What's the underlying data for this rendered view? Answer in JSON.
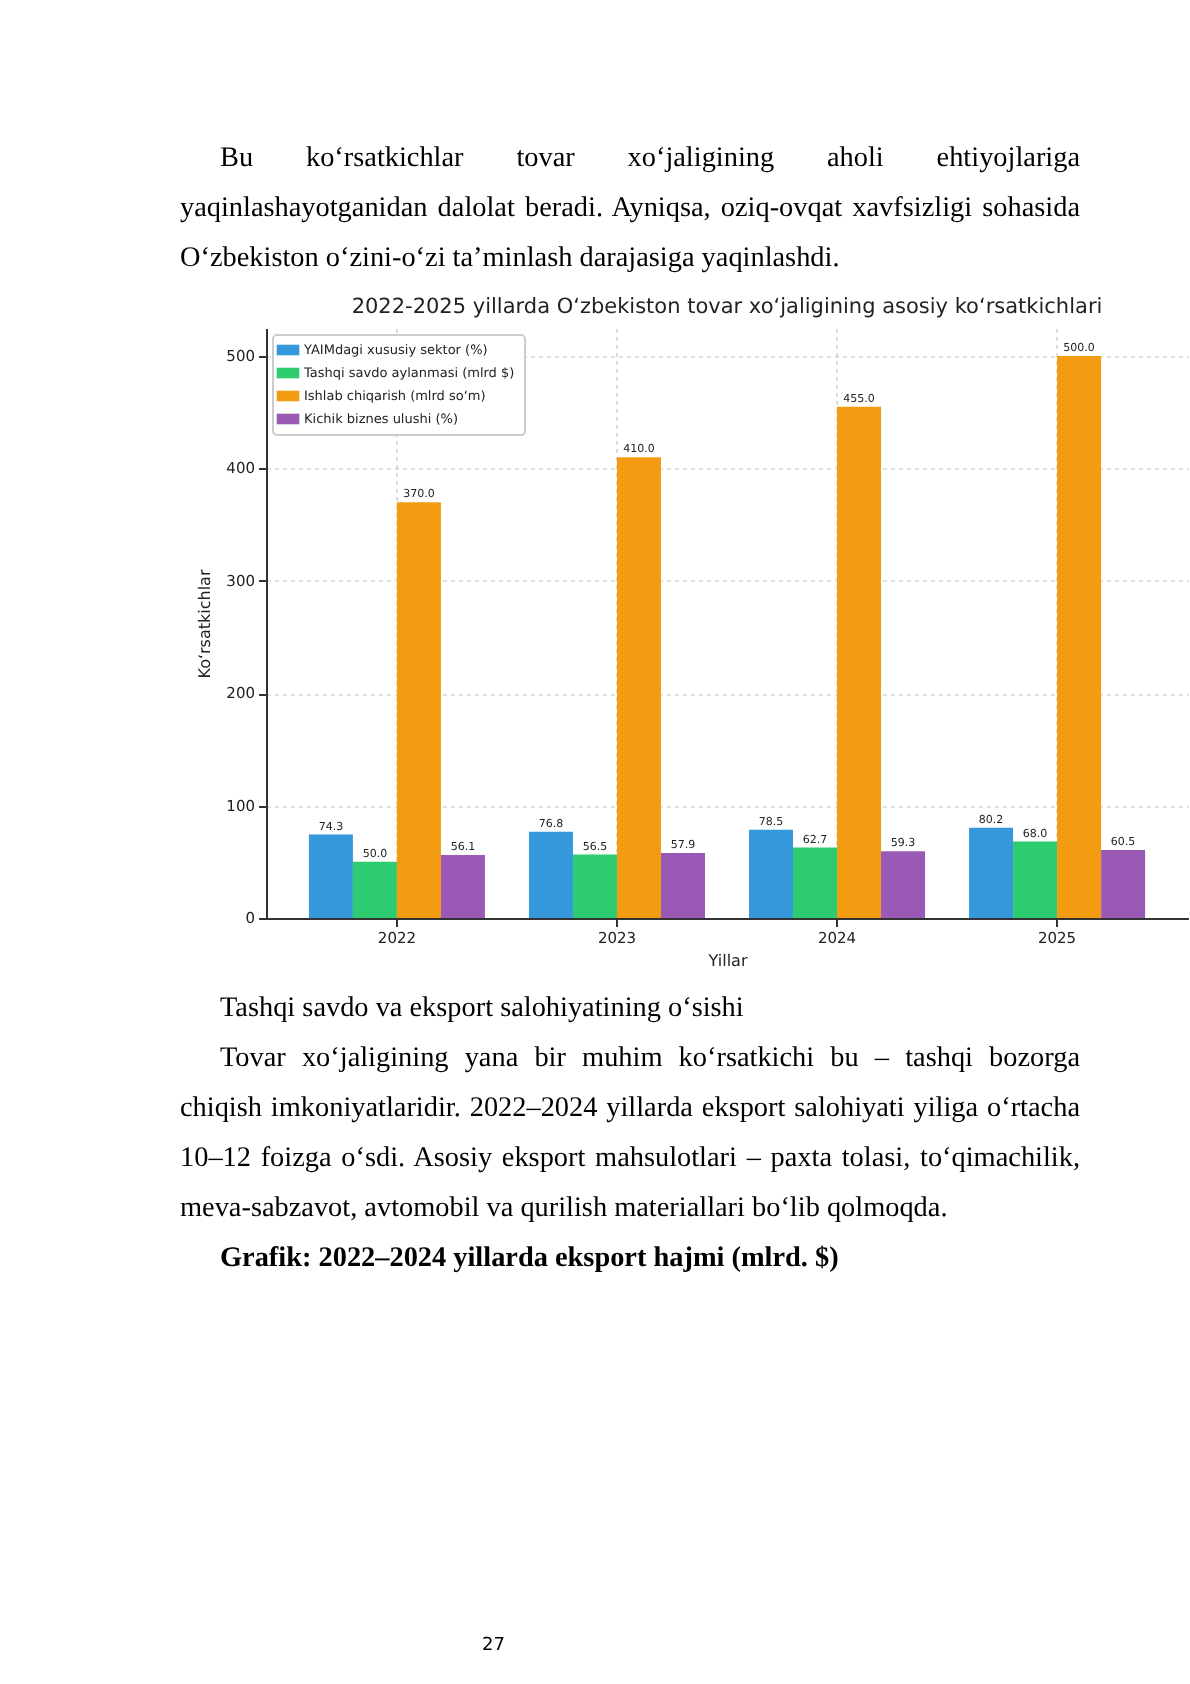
{
  "chart_data": {
    "type": "bar",
    "title": "2022-2025 yillarda O‘zbekiston tovar xo‘jaligining asosiy ko‘rsatkichlari",
    "xlabel": "Yillar",
    "ylabel": "Ko‘rsatkichlar",
    "categories": [
      "2022",
      "2023",
      "2024",
      "2025"
    ],
    "series": [
      {
        "name": "YAIMdagi xususiy sektor (%)",
        "color": "#3498db",
        "values": [
          74.3,
          76.8,
          78.5,
          80.2
        ],
        "value_labels": [
          "74.3",
          "76.8",
          "78.5",
          "80.2"
        ]
      },
      {
        "name": "Tashqi savdo aylanmasi (mlrd $)",
        "color": "#2ecc71",
        "values": [
          50.0,
          56.5,
          62.7,
          68.0
        ],
        "value_labels": [
          "50.0",
          "56.5",
          "62.7",
          "68.0"
        ]
      },
      {
        "name": "Ishlab chiqarish (mlrd so‘m)",
        "color": "#f39c12",
        "values": [
          370.0,
          410.0,
          455.0,
          500.0
        ],
        "value_labels": [
          "370.0",
          "410.0",
          "455.0",
          "500.0"
        ]
      },
      {
        "name": "Kichik biznes ulushi (%)",
        "color": "#9b59b6",
        "values": [
          56.1,
          57.9,
          59.3,
          60.5
        ],
        "value_labels": [
          "56.1",
          "57.9",
          "59.3",
          "60.5"
        ]
      }
    ],
    "ylim": [
      0,
      525
    ],
    "yticks": [
      0,
      100,
      200,
      300,
      400,
      500
    ],
    "grid": true,
    "legend": "top left",
    "annotations": [
      "Bu ko‘rsatkichlar tovar xo‘jaligining aholi ehtiyojlariga yaqinlashayotganidan dalolat beradi. Ayniqsa, oziq-ovqat xavfsizligi sohasida O‘zbekiston o‘zini-o‘zi ta’minlash darajasiga yaqinlashdi.",
      "Tashqi savdo va eksport salohiyatining o‘sishi",
      "Tovar xo‘jaligining yana bir muhim ko‘rsatkichi bu – tashqi bozorga chiqish imkoniyatlaridir. 2022–2024 yillarda eksport salohiyati yiliga o‘rtacha 10–12 foizga o‘sdi. Asosiy eksport mahsulotlari – paxta tolasi, to‘qimachilik, meva-sabzavot, avtomobil va qurilish materiallari bo‘lib qolmoqda.",
      "Grafik: 2022–2024 yillarda eksport hajmi (mlrd. $)",
      "27"
    ]
  }
}
